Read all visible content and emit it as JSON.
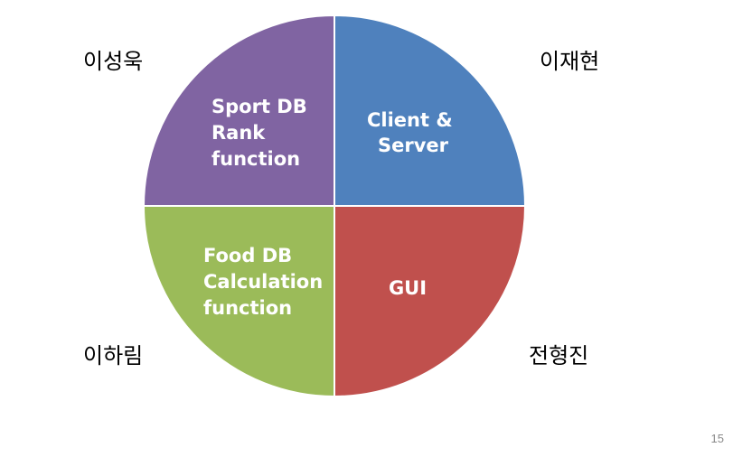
{
  "quadrants": [
    {
      "id": "top-right",
      "color": "#4f81bd",
      "lines": [
        "Client &",
        "Server"
      ],
      "person": "이재현"
    },
    {
      "id": "bottom-right",
      "color": "#c0504d",
      "lines": [
        "GUI"
      ],
      "person": "전형진"
    },
    {
      "id": "bottom-left",
      "color": "#9bbb59",
      "lines": [
        "Food DB",
        "Calculation",
        "function"
      ],
      "person": "이하림"
    },
    {
      "id": "top-left",
      "color": "#8064a2",
      "lines": [
        "Sport DB",
        "Rank",
        "function"
      ],
      "person": "이성욱"
    }
  ],
  "page_number": "15"
}
